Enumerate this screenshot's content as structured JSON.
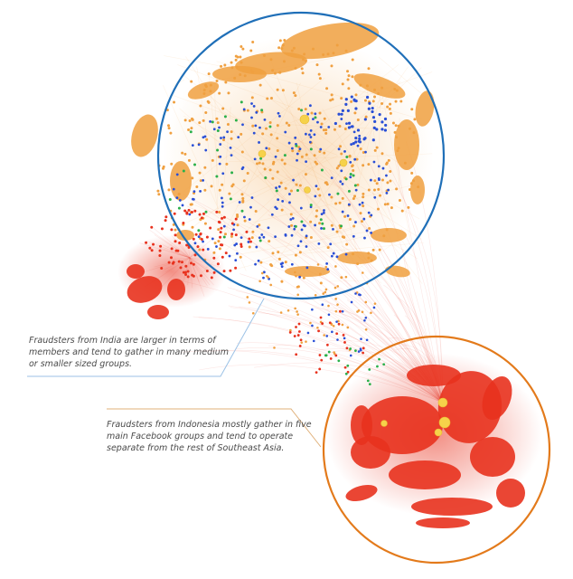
{
  "colors": {
    "india_group": "#f0a040",
    "indonesia_group": "#e8321e",
    "other_blue": "#2a4fd6",
    "other_green": "#2bb04a",
    "hub_yellow": "#f6d24a",
    "india_circle": "#1f6fb8",
    "indonesia_circle": "#e37a1b",
    "callout_india": "#9cc2e6",
    "callout_indonesia": "#e0b07a"
  },
  "annotations": [
    {
      "id": "india",
      "lines": [
        "Fraudsters from India are larger in terms of",
        "members and tend to gather in many medium",
        "or smaller sized groups."
      ]
    },
    {
      "id": "indonesia",
      "lines": [
        "Fraudsters from Indonesia mostly gather in five",
        "main Facebook groups and tend to operate",
        "separate from the rest of Southeast Asia."
      ]
    }
  ]
}
